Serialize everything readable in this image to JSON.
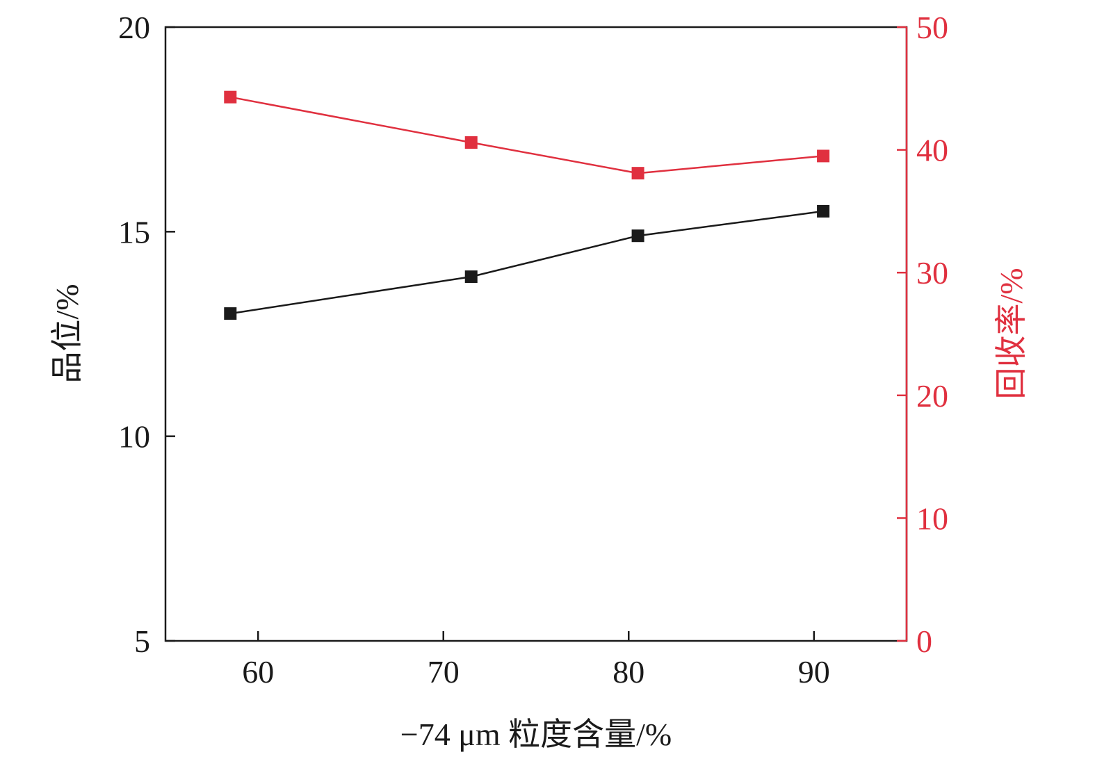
{
  "chart_data": {
    "type": "line",
    "xlabel": "−74 μm 粒度含量/%",
    "ylabel_left": "品位/%",
    "ylabel_right": "回收率/%",
    "x_ticks": [
      60,
      70,
      80,
      90
    ],
    "x_tick_labels": [
      "60",
      "70",
      "80",
      "90"
    ],
    "xlim": [
      55,
      95
    ],
    "ylim_left": [
      5,
      20
    ],
    "y_left_ticks": [
      5,
      10,
      15,
      20
    ],
    "y_left_tick_labels": [
      "5",
      "10",
      "15",
      "20"
    ],
    "ylim_right": [
      0,
      50
    ],
    "y_right_ticks": [
      0,
      10,
      20,
      30,
      40,
      50
    ],
    "y_right_tick_labels": [
      "0",
      "10",
      "20",
      "30",
      "40",
      "50"
    ],
    "grid": false,
    "series": [
      {
        "axis": "left",
        "color": "#1a1a1a",
        "marker": "square",
        "x": [
          58.5,
          71.5,
          80.5,
          90.5
        ],
        "values": [
          13.0,
          13.9,
          14.9,
          15.5
        ]
      },
      {
        "axis": "right",
        "color": "#e0303f",
        "marker": "square",
        "x": [
          58.5,
          71.5,
          80.5,
          90.5
        ],
        "values": [
          44.3,
          40.6,
          38.1,
          39.5
        ]
      }
    ]
  }
}
